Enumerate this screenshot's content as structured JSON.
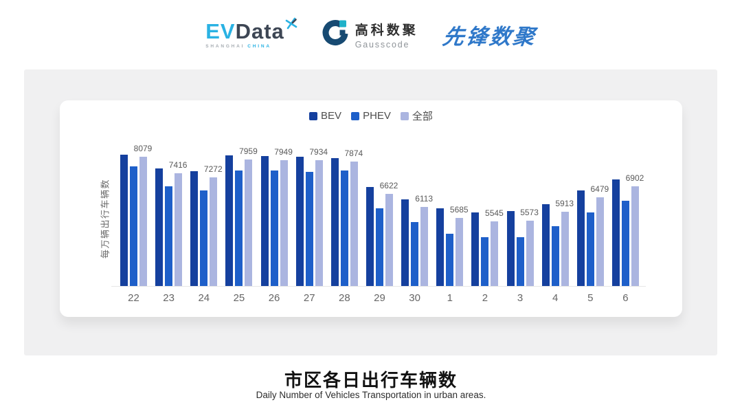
{
  "header": {
    "evdata_logo": {
      "ev": "EV",
      "data": "Data",
      "tagline_left": "SHANGHAI",
      "tagline_right": "CHINA",
      "colors": {
        "cyan": "#2AB2E3",
        "dark": "#3D4654"
      }
    },
    "gausscode_logo": {
      "name_cn": "高科数聚",
      "name_en": "Gausscode",
      "colors": {
        "navy": "#174A72",
        "teal": "#1FB1C9"
      }
    },
    "pioneer_logo": {
      "text": "先锋数聚",
      "color": "#2F78C9"
    }
  },
  "chart_data": {
    "type": "bar",
    "legend_position": "top-center",
    "ylabel": "每万辆出行车辆数",
    "categories": [
      "22",
      "23",
      "24",
      "25",
      "26",
      "27",
      "28",
      "29",
      "30",
      "1",
      "2",
      "3",
      "4",
      "5",
      "6"
    ],
    "series": [
      {
        "name": "BEV",
        "color": "#15409E",
        "values": [
          8160,
          7620,
          7520,
          8130,
          8110,
          8080,
          8030,
          6900,
          6410,
          6040,
          5900,
          5930,
          6220,
          6760,
          7190
        ],
        "data_labels_shown": false
      },
      {
        "name": "PHEV",
        "color": "#1E5FC9",
        "values": [
          7700,
          6920,
          6740,
          7540,
          7540,
          7490,
          7540,
          6060,
          5500,
          5040,
          4930,
          4910,
          5340,
          5900,
          6360
        ],
        "data_labels_shown": false
      },
      {
        "name": "全部",
        "color": "#ABB5E0",
        "values": [
          8079,
          7416,
          7272,
          7959,
          7949,
          7934,
          7874,
          6622,
          6113,
          5685,
          5545,
          5573,
          5913,
          6479,
          6902
        ],
        "data_labels_shown": true
      }
    ],
    "value_axis": {
      "min": 3000,
      "max": 8400,
      "ticks_shown": false,
      "gridlines": false
    },
    "axis_line_color": "#E6E6E6",
    "data_label_color": "#595959",
    "tick_label_color": "#666666",
    "legend_text_color": "#4D4D4D"
  },
  "footer": {
    "title": "市区各日出行车辆数",
    "subtitle": "Daily Number of Vehicles Transportation in urban areas."
  }
}
